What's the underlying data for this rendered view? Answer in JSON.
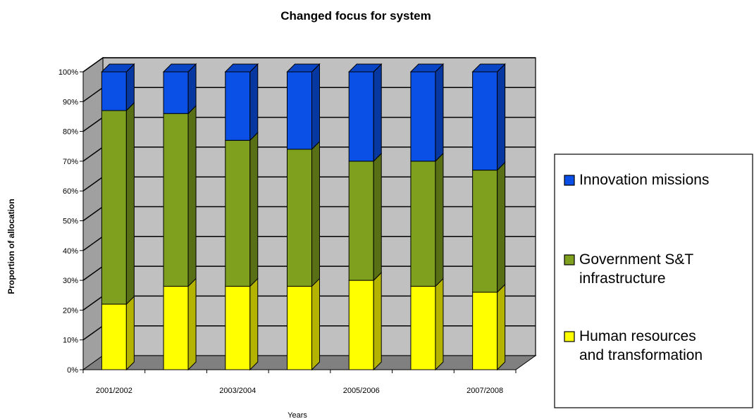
{
  "chart_data": {
    "type": "bar",
    "stacked": true,
    "three_d": true,
    "title": "Changed focus for system",
    "xlabel": "Years",
    "ylabel": "Proportion of allocation",
    "ylim": [
      0,
      100
    ],
    "y_ticks": [
      "0%",
      "10%",
      "20%",
      "30%",
      "40%",
      "50%",
      "60%",
      "70%",
      "80%",
      "90%",
      "100%"
    ],
    "x_tick_labels": [
      "2001/2002",
      "",
      "2003/2004",
      "",
      "2005/2006",
      "",
      "2007/2008"
    ],
    "grid": true,
    "legend_position": "right",
    "series": [
      {
        "name": "Human resources and transformation",
        "legend_lines": [
          "Human resources",
          "and transformation"
        ],
        "color": "#ffff00",
        "values": [
          22,
          28,
          28,
          28,
          30,
          28,
          26
        ]
      },
      {
        "name": "Government S&T infrastructure",
        "legend_lines": [
          "Government S&T",
          "infrastructure"
        ],
        "color": "#7f9f1f",
        "values": [
          65,
          58,
          49,
          46,
          40,
          42,
          41
        ]
      },
      {
        "name": "Innovation missions",
        "legend_lines": [
          "Innovation missions"
        ],
        "color": "#0a50e6",
        "values": [
          13,
          14,
          23,
          26,
          30,
          30,
          33
        ]
      }
    ]
  }
}
